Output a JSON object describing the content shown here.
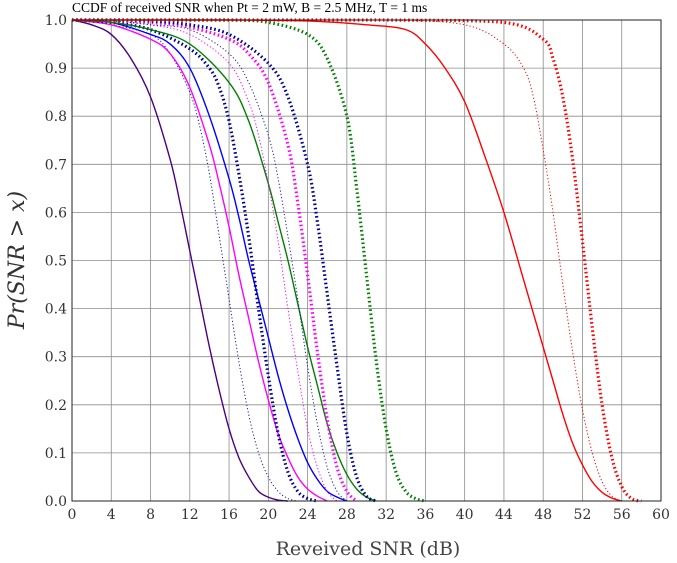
{
  "chart_data": {
    "type": "line",
    "title": "CCDF of received SNR when Pt = 2 mW, B = 2.5 MHz, T = 1 ms",
    "xlabel": "Reveived SNR (dB)",
    "ylabel": "Pr(SNR > x)",
    "xlim": [
      0,
      60
    ],
    "ylim": [
      0,
      1
    ],
    "xticks": [
      "0",
      "4",
      "8",
      "12",
      "16",
      "20",
      "24",
      "28",
      "32",
      "36",
      "40",
      "44",
      "48",
      "52",
      "56",
      "60"
    ],
    "yticks": [
      "0.0",
      "0.1",
      "0.2",
      "0.3",
      "0.4",
      "0.5",
      "0.6",
      "0.7",
      "0.8",
      "0.9",
      "1.0"
    ],
    "grid": true,
    "series": [
      {
        "color": "#4b0082",
        "style": "solid",
        "x": [
          0,
          2,
          4,
          6,
          8,
          10,
          11,
          12,
          13,
          14,
          15,
          16,
          17,
          18,
          19,
          20,
          21,
          22
        ],
        "y": [
          1.0,
          0.99,
          0.97,
          0.92,
          0.84,
          0.71,
          0.62,
          0.52,
          0.42,
          0.32,
          0.23,
          0.15,
          0.09,
          0.05,
          0.02,
          0.008,
          0.002,
          0.0
        ]
      },
      {
        "color": "#1a1aaa",
        "style": "thin-dotted",
        "x": [
          0,
          4,
          8,
          10,
          12,
          13,
          14,
          15,
          16,
          17,
          18,
          19,
          20,
          21,
          22,
          23
        ],
        "y": [
          1.0,
          0.99,
          0.97,
          0.93,
          0.85,
          0.78,
          0.68,
          0.55,
          0.42,
          0.29,
          0.18,
          0.1,
          0.05,
          0.02,
          0.005,
          0.0
        ]
      },
      {
        "color": "#ff00ff",
        "style": "solid",
        "x": [
          0,
          4,
          8,
          10,
          12,
          14,
          15,
          16,
          17,
          18,
          19,
          20,
          21,
          22,
          23,
          24,
          25,
          26
        ],
        "y": [
          1.0,
          0.99,
          0.96,
          0.93,
          0.86,
          0.74,
          0.66,
          0.57,
          0.47,
          0.38,
          0.29,
          0.21,
          0.14,
          0.09,
          0.05,
          0.025,
          0.01,
          0.0
        ]
      },
      {
        "color": "#0000ff",
        "style": "solid",
        "x": [
          0,
          4,
          8,
          10,
          12,
          14,
          16,
          17,
          18,
          19,
          20,
          21,
          22,
          23,
          24,
          25,
          26,
          27,
          28
        ],
        "y": [
          1.0,
          0.995,
          0.97,
          0.95,
          0.9,
          0.8,
          0.67,
          0.59,
          0.5,
          0.42,
          0.34,
          0.26,
          0.19,
          0.13,
          0.08,
          0.045,
          0.02,
          0.008,
          0.0
        ]
      },
      {
        "color": "#000099",
        "style": "dotted",
        "x": [
          0,
          4,
          8,
          12,
          14,
          15,
          16,
          17,
          18,
          19,
          20,
          21,
          22,
          23,
          24,
          25
        ],
        "y": [
          1.0,
          0.995,
          0.98,
          0.94,
          0.9,
          0.86,
          0.79,
          0.68,
          0.55,
          0.4,
          0.26,
          0.14,
          0.06,
          0.02,
          0.005,
          0.0
        ]
      },
      {
        "color": "#008000",
        "style": "solid",
        "x": [
          0,
          4,
          8,
          12,
          16,
          18,
          20,
          21,
          22,
          23,
          24,
          25,
          26,
          27,
          28,
          29,
          30,
          31
        ],
        "y": [
          1.0,
          0.995,
          0.98,
          0.95,
          0.87,
          0.79,
          0.66,
          0.58,
          0.5,
          0.41,
          0.32,
          0.24,
          0.16,
          0.1,
          0.055,
          0.025,
          0.008,
          0.0
        ]
      },
      {
        "color": "#ff00ff",
        "style": "thin-dotted",
        "x": [
          0,
          4,
          8,
          12,
          16,
          18,
          19,
          20,
          21,
          22,
          23,
          24,
          25,
          26,
          27
        ],
        "y": [
          1.0,
          0.998,
          0.99,
          0.97,
          0.91,
          0.83,
          0.76,
          0.66,
          0.54,
          0.4,
          0.27,
          0.15,
          0.07,
          0.02,
          0.0
        ]
      },
      {
        "color": "#1a1aaa",
        "style": "thin-dotted",
        "x": [
          0,
          4,
          8,
          12,
          16,
          18,
          20,
          21,
          22,
          23,
          24,
          25,
          26,
          27,
          28
        ],
        "y": [
          1.0,
          0.998,
          0.99,
          0.98,
          0.93,
          0.87,
          0.76,
          0.67,
          0.55,
          0.42,
          0.28,
          0.16,
          0.07,
          0.02,
          0.0
        ]
      },
      {
        "color": "#ff00ff",
        "style": "dotted",
        "x": [
          0,
          4,
          8,
          12,
          16,
          18,
          20,
          22,
          23,
          24,
          25,
          26,
          27,
          28,
          29
        ],
        "y": [
          1.0,
          0.999,
          0.995,
          0.985,
          0.96,
          0.93,
          0.87,
          0.74,
          0.62,
          0.47,
          0.31,
          0.17,
          0.07,
          0.02,
          0.0
        ]
      },
      {
        "color": "#000099",
        "style": "dotted",
        "x": [
          0,
          4,
          8,
          12,
          16,
          20,
          22,
          24,
          25,
          26,
          27,
          28,
          29,
          30,
          31
        ],
        "y": [
          1.0,
          1.0,
          0.998,
          0.99,
          0.97,
          0.91,
          0.84,
          0.7,
          0.58,
          0.43,
          0.28,
          0.14,
          0.05,
          0.01,
          0.0
        ]
      },
      {
        "color": "#008000",
        "style": "dotted",
        "x": [
          0,
          8,
          16,
          20,
          24,
          26,
          28,
          29,
          30,
          31,
          32,
          33,
          34,
          35,
          36
        ],
        "y": [
          1.0,
          1.0,
          1.0,
          0.995,
          0.97,
          0.92,
          0.8,
          0.65,
          0.47,
          0.29,
          0.15,
          0.06,
          0.02,
          0.005,
          0.0
        ]
      },
      {
        "color": "#ff0000",
        "style": "solid",
        "x": [
          0,
          8,
          16,
          24,
          30,
          34,
          36,
          38,
          40,
          42,
          44,
          46,
          47,
          48,
          49,
          50,
          51,
          52,
          53,
          54,
          55,
          56
        ],
        "y": [
          1.0,
          1.0,
          1.0,
          0.998,
          0.99,
          0.98,
          0.95,
          0.9,
          0.83,
          0.72,
          0.6,
          0.46,
          0.39,
          0.32,
          0.25,
          0.18,
          0.12,
          0.075,
          0.04,
          0.018,
          0.006,
          0.0
        ]
      },
      {
        "color": "#ff0000",
        "style": "thin-dotted",
        "x": [
          0,
          16,
          32,
          40,
          44,
          46,
          47,
          48,
          49,
          50,
          51,
          52,
          53,
          54,
          55,
          56
        ],
        "y": [
          1.0,
          1.0,
          1.0,
          0.99,
          0.95,
          0.9,
          0.84,
          0.73,
          0.6,
          0.45,
          0.31,
          0.19,
          0.1,
          0.04,
          0.01,
          0.0
        ]
      },
      {
        "color": "#ff0000",
        "style": "dotted",
        "x": [
          0,
          16,
          32,
          44,
          48,
          49,
          50,
          51,
          52,
          53,
          54,
          55,
          56,
          57,
          58
        ],
        "y": [
          1.0,
          1.0,
          1.0,
          0.995,
          0.96,
          0.92,
          0.84,
          0.71,
          0.54,
          0.36,
          0.2,
          0.09,
          0.03,
          0.005,
          0.0
        ]
      }
    ]
  }
}
